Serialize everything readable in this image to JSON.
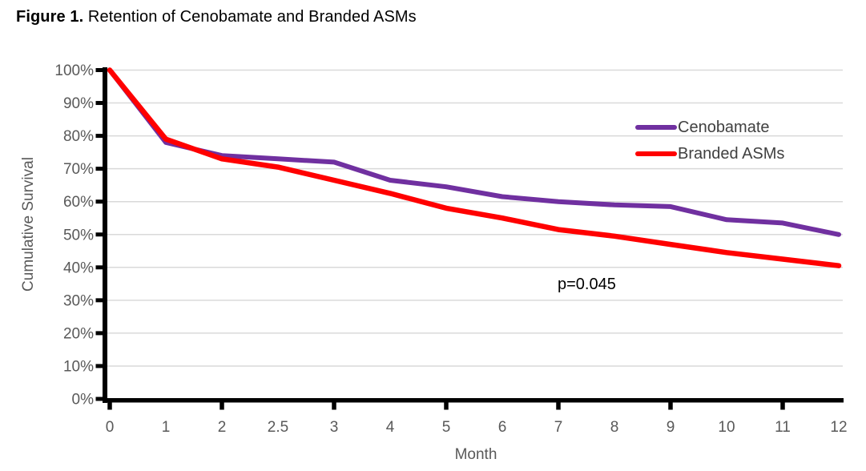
{
  "figure": {
    "title_prefix": "Figure 1.",
    "title_rest": "Retention of Cenobamate and Branded ASMs"
  },
  "chart_data": {
    "type": "line",
    "title": "Figure 1. Retention of Cenobamate and Branded ASMs",
    "xlabel": "Month",
    "ylabel": "Cumulative Survival",
    "categories": [
      "0",
      "1",
      "2",
      "2.5",
      "3",
      "4",
      "5",
      "6",
      "7",
      "8",
      "9",
      "10",
      "11",
      "12"
    ],
    "x_tick_mark_category_indices": [
      0,
      2,
      4,
      6,
      8,
      10,
      12
    ],
    "y_tick_labels": [
      "0%",
      "10%",
      "20%",
      "30%",
      "40%",
      "50%",
      "60%",
      "70%",
      "80%",
      "90%",
      "100%"
    ],
    "y_tick_values": [
      0,
      10,
      20,
      30,
      40,
      50,
      60,
      70,
      80,
      90,
      100
    ],
    "ylim": [
      0,
      100
    ],
    "grid": "horizontal",
    "legend_position": "inside-right",
    "series": [
      {
        "name": "Cenobamate",
        "color": "#7030A0",
        "values": [
          100,
          78,
          74,
          73,
          72,
          66.5,
          64.5,
          61.5,
          60,
          59,
          58.5,
          54.5,
          53.5,
          50
        ]
      },
      {
        "name": "Branded ASMs",
        "color": "#FF0000",
        "values": [
          100,
          79,
          73,
          70.5,
          66.5,
          62.5,
          58,
          55,
          51.5,
          49.5,
          47,
          44.5,
          42.5,
          40.5
        ]
      }
    ],
    "annotation": {
      "text": "p=0.045"
    }
  },
  "colors": {
    "axis": "#000000",
    "gridline": "#D9D9D9",
    "tick_label": "#595959",
    "axis_title": "#595959",
    "legend_text": "#404040",
    "annotation_text": "#000000",
    "background": "#FFFFFF"
  }
}
